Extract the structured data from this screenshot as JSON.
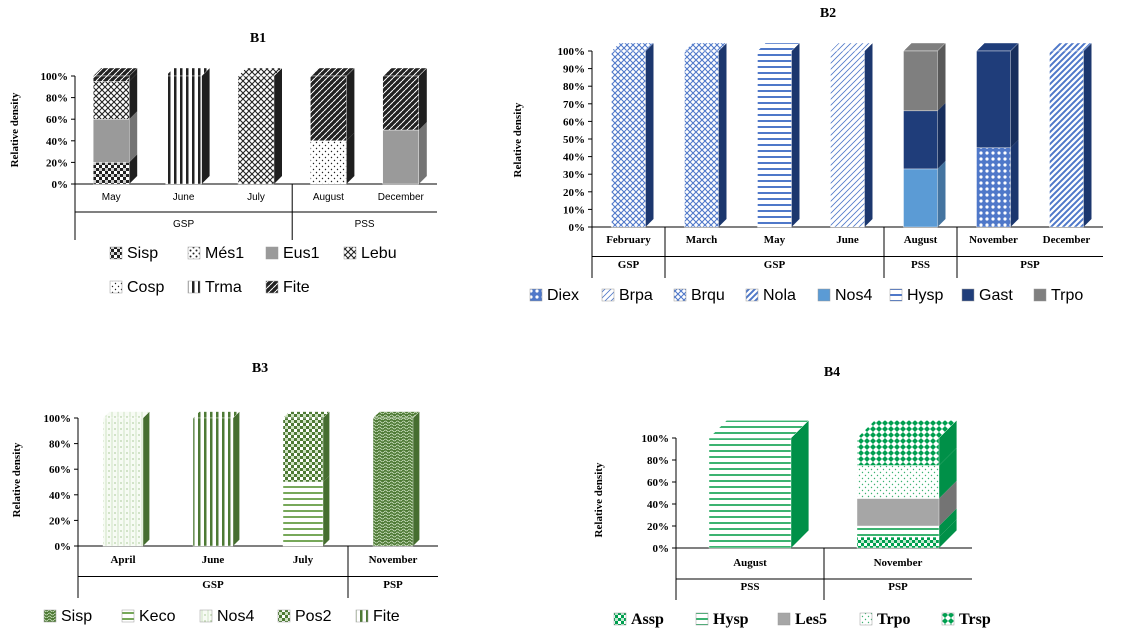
{
  "colors": {
    "b1_dark": "#222222",
    "b1_mid": "#9a9a9a",
    "b1_light": "#cfcfcf",
    "b2_dark": "#1f3d7a",
    "b2_mid": "#4f78c9",
    "b2_light": "#8fb0e6",
    "b2_solid": "#5b9bd5",
    "b2_grey": "#7f7f7f",
    "b3_dark": "#4e7a35",
    "b3_mid": "#77a85a",
    "b3_light": "#cfe3c3",
    "b3_grey": "#666666",
    "b4_dark": "#00a050",
    "b4_mid": "#3cb371",
    "b4_light": "#bfe8cf",
    "b4_grey": "#a6a6a6"
  },
  "chart_data": [
    {
      "id": "B1",
      "type": "bar",
      "stacked": true,
      "title": "B1",
      "ylabel": "Relative density",
      "ylim": [
        0,
        100
      ],
      "yticks": [
        "0%",
        "20%",
        "40%",
        "60%",
        "80%",
        "100%"
      ],
      "categories": [
        "May",
        "June",
        "July",
        "August",
        "December"
      ],
      "groups": [
        {
          "label": "GSP",
          "span": 3
        },
        {
          "label": "PSS",
          "span": 2
        }
      ],
      "series": [
        {
          "name": "Sisp",
          "pattern": "checker",
          "values": [
            20,
            0,
            0,
            0,
            0
          ]
        },
        {
          "name": "Més1",
          "pattern": "dots-dense",
          "values": [
            0,
            0,
            0,
            0,
            0
          ]
        },
        {
          "name": "Eus1",
          "pattern": "solid",
          "values": [
            40,
            0,
            0,
            0,
            50
          ]
        },
        {
          "name": "Lebu",
          "pattern": "crosshatch",
          "values": [
            35,
            0,
            100,
            0,
            0
          ]
        },
        {
          "name": "Cosp",
          "pattern": "dots",
          "values": [
            0,
            0,
            0,
            40,
            0
          ]
        },
        {
          "name": "Trma",
          "pattern": "vstripes",
          "values": [
            0,
            100,
            0,
            0,
            0
          ]
        },
        {
          "name": "Fite",
          "pattern": "weave",
          "values": [
            5,
            0,
            0,
            60,
            50
          ]
        }
      ],
      "legend": [
        [
          "Sisp",
          "Més1",
          "Eus1",
          "Lebu"
        ],
        [
          "Cosp",
          "Trma",
          "Fite"
        ]
      ]
    },
    {
      "id": "B2",
      "type": "bar",
      "stacked": true,
      "title": "B2",
      "ylabel": "Relative density",
      "ylim": [
        0,
        100
      ],
      "yticks": [
        "0%",
        "10%",
        "20%",
        "30%",
        "40%",
        "50%",
        "60%",
        "70%",
        "80%",
        "90%",
        "100%"
      ],
      "categories": [
        "February",
        "March",
        "May",
        "June",
        "August",
        "November",
        "December"
      ],
      "groups": [
        {
          "label": "GSP",
          "span": 1
        },
        {
          "label": "GSP",
          "span": 3
        },
        {
          "label": "PSS",
          "span": 1
        },
        {
          "label": "PSP",
          "span": 2
        }
      ],
      "series": [
        {
          "name": "Diex",
          "pattern": "circles",
          "values": [
            0,
            0,
            0,
            0,
            0,
            45,
            0
          ]
        },
        {
          "name": "Brpa",
          "pattern": "diag-thin",
          "values": [
            0,
            0,
            0,
            100,
            0,
            0,
            0
          ]
        },
        {
          "name": "Brqu",
          "pattern": "crosshatch",
          "values": [
            100,
            100,
            0,
            0,
            0,
            0,
            0
          ]
        },
        {
          "name": "Nola",
          "pattern": "diag-thick",
          "values": [
            0,
            0,
            0,
            0,
            0,
            0,
            100
          ]
        },
        {
          "name": "Nos4",
          "pattern": "solid",
          "values": [
            0,
            0,
            0,
            0,
            33,
            0,
            0
          ]
        },
        {
          "name": "Hysp",
          "pattern": "hstripes",
          "values": [
            0,
            0,
            100,
            0,
            0,
            0,
            0
          ]
        },
        {
          "name": "Gast",
          "pattern": "solid-dark",
          "values": [
            0,
            0,
            0,
            0,
            33,
            55,
            0
          ]
        },
        {
          "name": "Trpo",
          "pattern": "solid-grey",
          "values": [
            0,
            0,
            0,
            0,
            34,
            0,
            0
          ]
        }
      ],
      "legend": [
        [
          "Diex",
          "Brpa",
          "Brqu",
          "Nola",
          "Nos4",
          "Hysp",
          "Gast",
          "Trpo"
        ]
      ]
    },
    {
      "id": "B3",
      "type": "bar",
      "stacked": true,
      "title": "B3",
      "ylabel": "Relative density",
      "ylim": [
        0,
        100
      ],
      "yticks": [
        "0%",
        "20%",
        "40%",
        "60%",
        "80%",
        "100%"
      ],
      "categories": [
        "April",
        "June",
        "July",
        "November"
      ],
      "groups": [
        {
          "label": "GSP",
          "span": 3
        },
        {
          "label": "PSP",
          "span": 1
        }
      ],
      "series": [
        {
          "name": "Sisp",
          "pattern": "wave",
          "values": [
            0,
            0,
            0,
            100
          ]
        },
        {
          "name": "Keco",
          "pattern": "hstripes",
          "values": [
            0,
            0,
            50,
            0
          ]
        },
        {
          "name": "Nos4",
          "pattern": "dots-grid",
          "values": [
            100,
            0,
            0,
            0
          ]
        },
        {
          "name": "Pos2",
          "pattern": "checker",
          "values": [
            0,
            0,
            50,
            0
          ]
        },
        {
          "name": "Fite",
          "pattern": "vstripes",
          "values": [
            0,
            100,
            0,
            0
          ]
        }
      ],
      "legend": [
        [
          "Sisp",
          "Keco",
          "Nos4",
          "Pos2",
          "Fite"
        ]
      ]
    },
    {
      "id": "B4",
      "type": "bar",
      "stacked": true,
      "title": "B4",
      "ylabel": "Relative density",
      "ylim": [
        0,
        100
      ],
      "yticks": [
        "0%",
        "20%",
        "40%",
        "60%",
        "80%",
        "100%"
      ],
      "categories": [
        "August",
        "November"
      ],
      "groups": [
        {
          "label": "PSS",
          "span": 1
        },
        {
          "label": "PSP",
          "span": 1
        }
      ],
      "series": [
        {
          "name": "Assp",
          "pattern": "checker",
          "values": [
            0,
            10
          ]
        },
        {
          "name": "Hysp",
          "pattern": "hstripes",
          "values": [
            100,
            10
          ]
        },
        {
          "name": "Les5",
          "pattern": "solid-grey",
          "values": [
            0,
            25
          ]
        },
        {
          "name": "Trpo",
          "pattern": "dots",
          "values": [
            0,
            30
          ]
        },
        {
          "name": "Trsp",
          "pattern": "diamonds",
          "values": [
            0,
            25
          ]
        }
      ],
      "legend": [
        [
          "Assp",
          "Hysp",
          "Les5",
          "Trpo",
          "Trsp"
        ]
      ]
    }
  ]
}
